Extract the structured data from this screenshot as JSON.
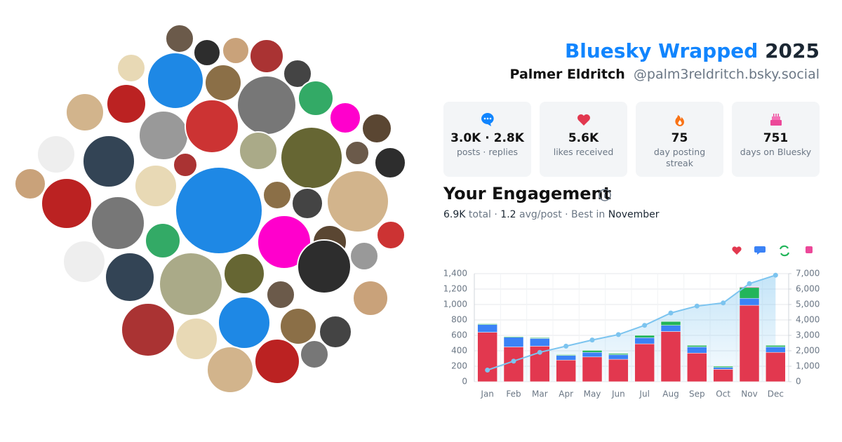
{
  "header": {
    "title": "Bluesky Wrapped",
    "year": "2025",
    "name": "Palmer Eldritch",
    "handle": "@palm3reldritch.bsky.social"
  },
  "stats": [
    {
      "value": "3.0K · 2.8K",
      "label": "posts · replies"
    },
    {
      "value": "5.6K",
      "label": "likes received"
    },
    {
      "value": "75",
      "label": "day posting streak"
    },
    {
      "value": "751",
      "label": "days on Bluesky"
    }
  ],
  "engagement": {
    "title": "Your Engagement",
    "summary": [
      "6.9K",
      " total · ",
      "1.2",
      " avg/post · Best in ",
      "November"
    ]
  },
  "chart_data": {
    "type": "stacked-bar-line",
    "categories": [
      "Jan",
      "Feb",
      "Mar",
      "Apr",
      "May",
      "Jun",
      "Jul",
      "Aug",
      "Sep",
      "Oct",
      "Nov",
      "Dec"
    ],
    "series": [
      {
        "color": "#e2384f",
        "values": [
          640,
          450,
          460,
          280,
          320,
          290,
          490,
          650,
          370,
          160,
          990,
          380
        ]
      },
      {
        "color": "#3b82f6",
        "values": [
          100,
          125,
          100,
          60,
          60,
          60,
          80,
          80,
          80,
          25,
          90,
          70
        ]
      },
      {
        "color": "#22b55a",
        "values": [
          10,
          10,
          10,
          10,
          25,
          15,
          30,
          50,
          20,
          15,
          140,
          20
        ]
      },
      {
        "color": "#ec4899",
        "values": [
          0,
          0,
          0,
          0,
          0,
          0,
          0,
          0,
          0,
          0,
          10,
          0
        ]
      },
      {
        "color": "#7cc4ef",
        "axis": "y2",
        "values": [
          750,
          1330,
          1900,
          2300,
          2700,
          3050,
          3650,
          4450,
          4900,
          5100,
          6350,
          6900
        ]
      }
    ],
    "ylim": [
      0,
      1400
    ],
    "yticks": [
      0,
      200,
      400,
      600,
      800,
      {
        "value": 1000,
        "label": "1,000"
      },
      {
        "value": 1200,
        "label": "1,200"
      },
      {
        "value": 1400,
        "label": "1,400"
      }
    ],
    "y2lim": [
      0,
      7000
    ],
    "y2ticks": [
      0,
      {
        "value": 1000,
        "label": "1,000"
      },
      {
        "value": 2000,
        "label": "2,000"
      },
      {
        "value": 3000,
        "label": "3,000"
      },
      {
        "value": 4000,
        "label": "4,000"
      },
      {
        "value": 5000,
        "label": "5,000"
      },
      {
        "value": 6000,
        "label": "6,000"
      },
      {
        "value": 7000,
        "label": "7,000"
      }
    ],
    "grid": true
  }
}
